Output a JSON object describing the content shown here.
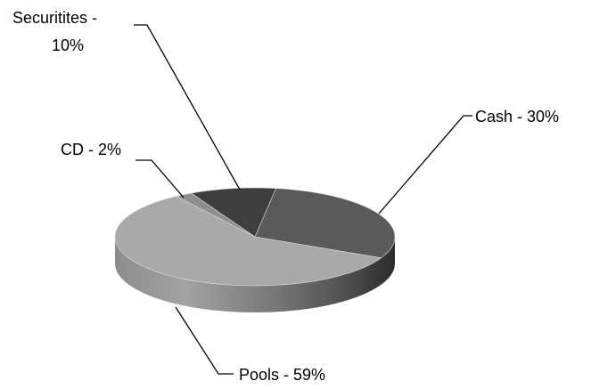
{
  "chart_data": {
    "type": "pie",
    "style": "3d",
    "title": "",
    "slices": [
      {
        "label": "Cash",
        "value": 30,
        "text": "Cash - 30%",
        "color": "#5a5a5a",
        "side": "#3a3a3a"
      },
      {
        "label": "Pools",
        "value": 59,
        "text": "Pools - 59%",
        "color": "#a9a9a9",
        "side": "#8a8a8a"
      },
      {
        "label": "CD",
        "value": 2,
        "text": "CD - 2%",
        "color": "#8f8f8f",
        "side": "#707070"
      },
      {
        "label": "Securitites",
        "value": 10,
        "text_lines": [
          "Securitites -",
          "10%"
        ],
        "color": "#3e3e3e",
        "side": "#2a2a2a"
      }
    ],
    "legend": "none"
  }
}
